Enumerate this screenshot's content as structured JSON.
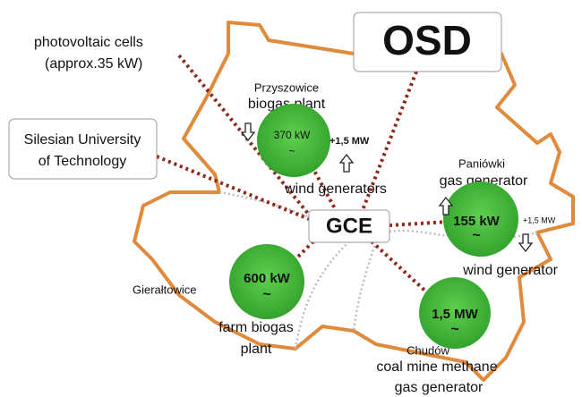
{
  "pv": [
    "photovoltaic cells",
    "(approx.35 kW)"
  ],
  "osd": "OSD",
  "university": [
    "Silesian University",
    "of Technology"
  ],
  "center": "GCE",
  "przyszowice": {
    "place": "Przyszowice",
    "kind": "biogas plant",
    "power": "370 kW",
    "symbol": "~",
    "extra": "+1,5 MW",
    "extra_kind": "wind generators"
  },
  "paniowki": {
    "place": "Paniówki",
    "kind": "gas generator",
    "power": "155 kW",
    "symbol": "~",
    "extra": "+1,5 MW",
    "extra_kind": "wind generator"
  },
  "gieraltowice": {
    "place": "Gierałtowice",
    "power": "600 kW",
    "symbol": "~",
    "kind": [
      "farm biogas",
      "plant"
    ]
  },
  "chudow": {
    "place": "Chudów",
    "power": "1,5 MW",
    "symbol": "~",
    "kind": [
      "coal mine methane",
      "gas generator"
    ]
  }
}
